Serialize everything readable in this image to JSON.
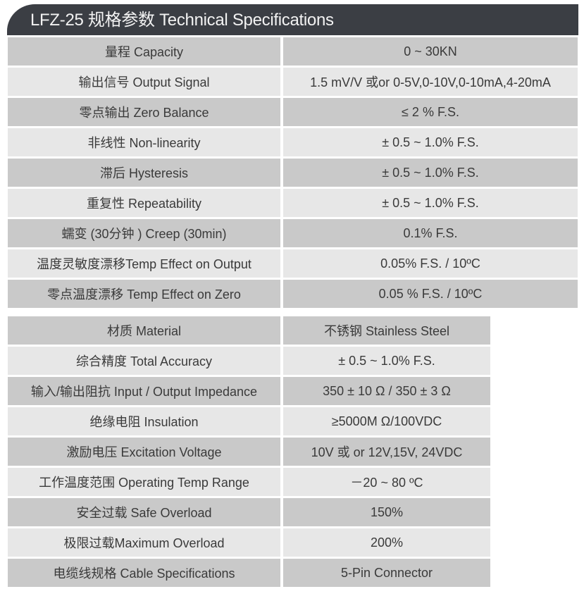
{
  "title": "LFZ-25 规格参数 Technical Specifications",
  "table1": [
    {
      "label": "量程 Capacity",
      "value": "0 ~ 30KN"
    },
    {
      "label": "输出信号 Output Signal",
      "value": "1.5 mV/V 或or 0-5V,0-10V,0-10mA,4-20mA"
    },
    {
      "label": "零点输出  Zero Balance",
      "value": "≤ 2 % F.S."
    },
    {
      "label": "非线性 Non-linearity",
      "value": "± 0.5 ~ 1.0% F.S."
    },
    {
      "label": "滞后 Hysteresis",
      "value": "± 0.5 ~ 1.0% F.S."
    },
    {
      "label": "重复性 Repeatability",
      "value": "± 0.5 ~ 1.0% F.S."
    },
    {
      "label": "蠕变 (30分钟 ) Creep (30min)",
      "value": "0.1% F.S."
    },
    {
      "label": "温度灵敏度漂移Temp Effect on Output",
      "value": "0.05% F.S. / 10ºC"
    },
    {
      "label": "零点温度漂移 Temp Effect on Zero",
      "value": "0.05 % F.S. / 10ºC"
    }
  ],
  "table2": [
    {
      "label": "材质 Material",
      "value": "不锈钢 Stainless Steel"
    },
    {
      "label": "综合精度 Total Accuracy",
      "value": "± 0.5 ~ 1.0% F.S."
    },
    {
      "label": "输入/输出阻抗 Input / Output Impedance",
      "value": "350  ± 10 Ω / 350 ± 3 Ω"
    },
    {
      "label": "绝缘电阻  Insulation",
      "value": "≥5000M Ω/100VDC"
    },
    {
      "label": "激励电压  Excitation Voltage",
      "value": "10V 或 or 12V,15V, 24VDC"
    },
    {
      "label": "工作温度范围 Operating Temp  Range",
      "value": "－20 ~ 80 ºC"
    },
    {
      "label": "安全过载 Safe Overload",
      "value": "150%"
    },
    {
      "label": "极限过载Maximum Overload",
      "value": "200%"
    },
    {
      "label": "电缆线规格 Cable Specifications",
      "value": "5-Pin Connector"
    }
  ]
}
